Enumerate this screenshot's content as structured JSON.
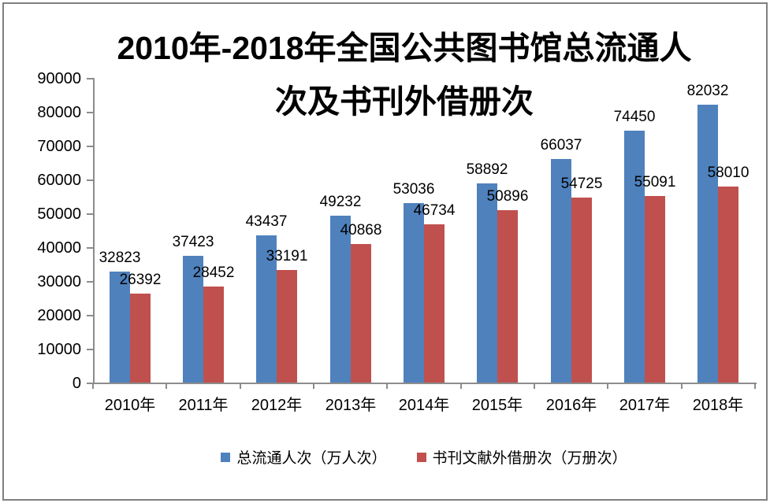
{
  "title": {
    "line1": "2010年-2018年全国公共图书馆总流通人",
    "line2": "次及书刊外借册次"
  },
  "chart_data": {
    "type": "bar",
    "categories": [
      "2010年",
      "2011年",
      "2012年",
      "2013年",
      "2014年",
      "2015年",
      "2016年",
      "2017年",
      "2018年"
    ],
    "series": [
      {
        "name": "总流通人次（万人次）",
        "color": "#4F81BD",
        "values": [
          32823,
          37423,
          43437,
          49232,
          53036,
          58892,
          66037,
          74450,
          82032
        ]
      },
      {
        "name": "书刊文献外借册次（万册次）",
        "color": "#C0504D",
        "values": [
          26392,
          28452,
          33191,
          40868,
          46734,
          50896,
          54725,
          55091,
          58010
        ]
      }
    ],
    "title": "2010年-2018年全国公共图书馆总流通人次及书刊外借册次",
    "xlabel": "",
    "ylabel": "",
    "ylim": [
      0,
      90000
    ],
    "ytick_step": 10000,
    "grid": false,
    "data_labels": true,
    "legend_position": "bottom",
    "axis_color": "#8C8C8C",
    "text_color": "#000000",
    "frame_border_color": "#808080"
  }
}
